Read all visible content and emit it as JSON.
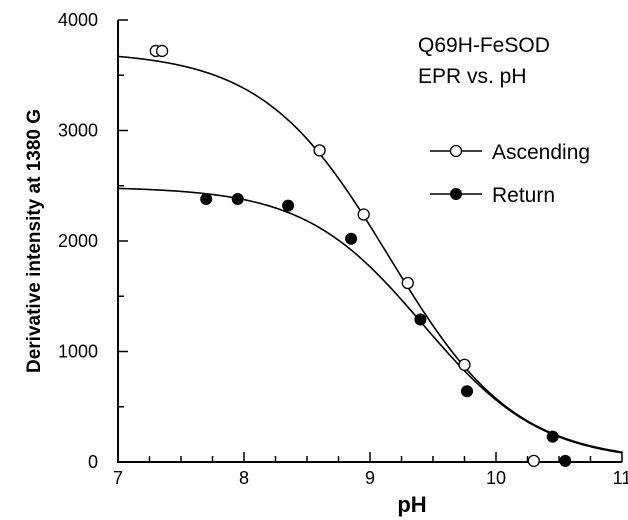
{
  "chart_data": {
    "type": "scatter",
    "title_lines": [
      "Q69H-FeSOD",
      "EPR vs. pH"
    ],
    "xlabel": "pH",
    "ylabel": "Derivative intensity at 1380 G",
    "xlim": [
      7,
      11
    ],
    "ylim": [
      0,
      4000
    ],
    "x_ticks": [
      7,
      8,
      9,
      10,
      11
    ],
    "y_ticks": [
      0,
      1000,
      2000,
      3000,
      4000
    ],
    "x_minor_step": 0.25,
    "y_minor_step": 500,
    "grid": false,
    "legend_position": "right",
    "series": [
      {
        "name": "Ascending",
        "marker": "open-circle",
        "points": [
          {
            "x": 7.3,
            "y": 3720
          },
          {
            "x": 7.35,
            "y": 3720
          },
          {
            "x": 8.6,
            "y": 2820
          },
          {
            "x": 8.95,
            "y": 2240
          },
          {
            "x": 9.3,
            "y": 1620
          },
          {
            "x": 9.75,
            "y": 880
          },
          {
            "x": 10.3,
            "y": 10
          }
        ],
        "fit": {
          "model": "sigmoid",
          "plateau": 3720,
          "baseline": 0,
          "midpoint": 9.15,
          "width": 0.5
        }
      },
      {
        "name": "Return",
        "marker": "filled-circle",
        "points": [
          {
            "x": 7.7,
            "y": 2380
          },
          {
            "x": 7.95,
            "y": 2380
          },
          {
            "x": 8.35,
            "y": 2320
          },
          {
            "x": 8.85,
            "y": 2020
          },
          {
            "x": 9.4,
            "y": 1290
          },
          {
            "x": 9.77,
            "y": 640
          },
          {
            "x": 10.45,
            "y": 230
          },
          {
            "x": 10.55,
            "y": 10
          }
        ],
        "fit": {
          "model": "sigmoid",
          "plateau": 2490,
          "baseline": 0,
          "midpoint": 9.42,
          "width": 0.47
        }
      }
    ],
    "colors": {
      "ink": "#000000",
      "background": "#ffffff"
    }
  }
}
